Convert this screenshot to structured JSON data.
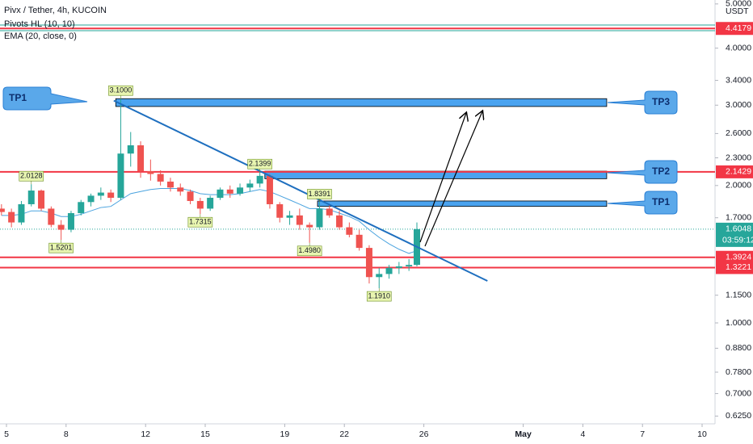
{
  "chart_data": {
    "type": "candlestick",
    "title": "Pivx / Tether, 4h, KUCOIN",
    "indicators": [
      "Pivots HL (10, 10)",
      "EMA (20, close, 0)"
    ],
    "currency": "USDT",
    "log_scale": true,
    "up_color": "#26a69a",
    "down_color": "#ef5350",
    "ema_color": "#4aa3df",
    "x": [
      4.75,
      5.25,
      5.75,
      6.25,
      6.75,
      7.25,
      7.75,
      8.25,
      8.75,
      9.25,
      9.75,
      10.25,
      10.75,
      11.25,
      11.75,
      12.25,
      12.75,
      13.25,
      13.75,
      14.25,
      14.75,
      15.25,
      15.75,
      16.25,
      16.75,
      17.25,
      17.75,
      18.25,
      18.75,
      19.25,
      19.75,
      20.25,
      20.75,
      21.25,
      21.75,
      22.25,
      22.75,
      23.25,
      23.75,
      24.25,
      24.75,
      25.25,
      25.65
    ],
    "open": [
      1.78,
      1.75,
      1.66,
      1.82,
      1.95,
      1.78,
      1.64,
      1.6,
      1.74,
      1.84,
      1.9,
      1.93,
      1.88,
      2.35,
      2.45,
      2.15,
      2.12,
      2.04,
      1.98,
      1.94,
      1.85,
      1.78,
      1.88,
      1.96,
      1.92,
      1.98,
      2.02,
      2.1,
      1.82,
      1.7,
      1.72,
      1.64,
      1.62,
      1.78,
      1.72,
      1.62,
      1.56,
      1.46,
      1.26,
      1.28,
      1.32,
      1.33,
      1.34
    ],
    "high": [
      1.82,
      1.78,
      1.85,
      2.0128,
      1.96,
      1.8,
      1.68,
      1.76,
      1.86,
      1.92,
      1.98,
      1.96,
      3.1,
      2.62,
      2.5,
      2.28,
      2.16,
      2.08,
      2.02,
      1.96,
      1.88,
      1.9,
      1.98,
      2.0,
      2.02,
      2.06,
      2.1399,
      2.12,
      1.84,
      1.76,
      1.78,
      1.66,
      1.8391,
      1.82,
      1.76,
      1.66,
      1.6,
      1.48,
      1.32,
      1.34,
      1.36,
      1.38,
      1.66
    ],
    "low": [
      1.72,
      1.62,
      1.64,
      1.8,
      1.76,
      1.62,
      1.5201,
      1.58,
      1.72,
      1.8,
      1.86,
      1.84,
      1.86,
      2.2,
      2.08,
      2.05,
      2.0,
      1.94,
      1.9,
      1.82,
      1.7315,
      1.76,
      1.86,
      1.88,
      1.9,
      1.94,
      1.98,
      1.78,
      1.66,
      1.64,
      1.6,
      1.498,
      1.6,
      1.7,
      1.6,
      1.54,
      1.44,
      1.22,
      1.191,
      1.25,
      1.28,
      1.3,
      1.33
    ],
    "close": [
      1.75,
      1.66,
      1.82,
      1.95,
      1.78,
      1.64,
      1.6,
      1.74,
      1.84,
      1.9,
      1.93,
      1.88,
      2.35,
      2.45,
      2.15,
      2.12,
      2.04,
      1.98,
      1.94,
      1.85,
      1.78,
      1.88,
      1.96,
      1.92,
      1.98,
      2.02,
      2.1,
      1.82,
      1.7,
      1.72,
      1.64,
      1.62,
      1.78,
      1.72,
      1.62,
      1.56,
      1.46,
      1.26,
      1.28,
      1.32,
      1.33,
      1.34,
      1.6048
    ],
    "ema": [
      1.72,
      1.72,
      1.73,
      1.76,
      1.76,
      1.74,
      1.71,
      1.71,
      1.73,
      1.76,
      1.79,
      1.8,
      1.86,
      1.92,
      1.94,
      1.96,
      1.97,
      1.97,
      1.97,
      1.95,
      1.92,
      1.91,
      1.91,
      1.91,
      1.92,
      1.94,
      1.96,
      1.94,
      1.9,
      1.86,
      1.82,
      1.78,
      1.78,
      1.77,
      1.74,
      1.71,
      1.67,
      1.6,
      1.54,
      1.49,
      1.45,
      1.42,
      1.44
    ],
    "pivots": [
      {
        "x": 10.75,
        "value": 3.1,
        "label": "3.1000",
        "side": "high"
      },
      {
        "x": 6.25,
        "value": 2.0128,
        "label": "2.0128",
        "side": "high"
      },
      {
        "x": 7.75,
        "value": 1.5201,
        "label": "1.5201",
        "side": "low"
      },
      {
        "x": 17.75,
        "value": 2.1399,
        "label": "2.1399",
        "side": "high"
      },
      {
        "x": 14.75,
        "value": 1.7315,
        "label": "1.7315",
        "side": "low"
      },
      {
        "x": 20.75,
        "value": 1.8391,
        "label": "1.8391",
        "side": "high"
      },
      {
        "x": 20.25,
        "value": 1.498,
        "label": "1.4980",
        "side": "low"
      },
      {
        "x": 23.75,
        "value": 1.191,
        "label": "1.1910",
        "side": "low"
      }
    ],
    "levels": [
      {
        "value": 4.4179,
        "label": "4.4179",
        "color": "#f23645"
      },
      {
        "value": 2.1429,
        "label": "2.1429",
        "color": "#f23645"
      },
      {
        "value": 1.3924,
        "label": "1.3924",
        "color": "#f23645"
      },
      {
        "value": 1.3221,
        "label": "1.3221",
        "color": "#f23645"
      }
    ],
    "current": {
      "value": 1.6048,
      "label": "1.6048",
      "timer": "03:59:12",
      "color": "#26a69a"
    },
    "trendline": {
      "x": [
        10.4,
        29.2
      ],
      "values": [
        3.07,
        1.236
      ],
      "color": "#1e6fbf"
    },
    "zones": [
      {
        "x": [
          10.5,
          35.2
        ],
        "values": [
          3.1,
          2.98
        ]
      },
      {
        "x": [
          18.0,
          35.2
        ],
        "values": [
          2.15,
          2.07
        ]
      },
      {
        "x": [
          20.65,
          35.2
        ],
        "values": [
          1.85,
          1.8
        ]
      }
    ],
    "callouts": [
      "TP1",
      "TP3",
      "TP2",
      "TP1"
    ],
    "xlim": [
      4.675,
      40.65
    ],
    "ylim": [
      0.601,
      5.1
    ],
    "xticks": [
      5,
      8,
      12,
      15,
      19,
      22,
      26,
      {
        "value": 31,
        "label": "May"
      },
      {
        "value": 34,
        "label": "4"
      },
      {
        "value": 37,
        "label": "7"
      },
      {
        "value": 40,
        "label": "10"
      }
    ],
    "yticks": [
      {
        "value": 5,
        "label": "5.0000"
      },
      {
        "value": 4,
        "label": "4.0000"
      },
      {
        "value": 3.4,
        "label": "3.4000"
      },
      {
        "value": 3,
        "label": "3.0000"
      },
      {
        "value": 2.6,
        "label": "2.6000"
      },
      {
        "value": 2.3,
        "label": "2.3000"
      },
      {
        "value": 2,
        "label": "2.0000"
      },
      {
        "value": 1.7,
        "label": "1.7000"
      },
      {
        "value": 1.15,
        "label": "1.1500"
      },
      {
        "value": 1,
        "label": "1.0000"
      },
      {
        "value": 0.88,
        "label": "0.8800"
      },
      {
        "value": 0.78,
        "label": "0.7800"
      },
      {
        "value": 0.7,
        "label": "0.7000"
      },
      {
        "value": 0.625,
        "label": "0.6250"
      }
    ]
  }
}
